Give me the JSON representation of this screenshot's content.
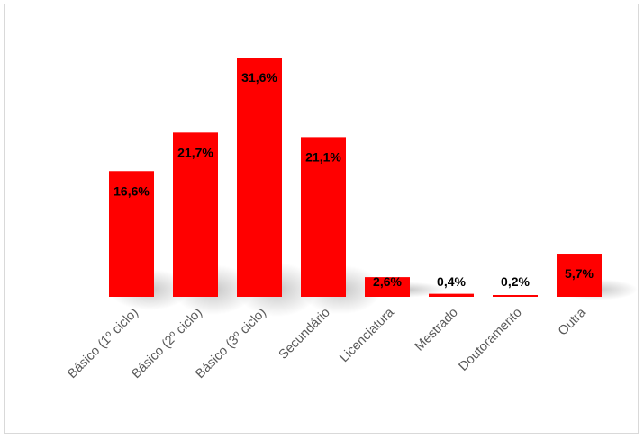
{
  "chart_data": {
    "type": "bar",
    "categories": [
      "Básico (1º ciclo)",
      "Básico (2º ciclo)",
      "Básico (3º ciclo)",
      "Secundário",
      "Licenciatura",
      "Mestrado",
      "Doutoramento",
      "Outra"
    ],
    "values": [
      16.6,
      21.7,
      31.6,
      21.1,
      2.6,
      0.4,
      0.2,
      5.7
    ],
    "data_labels": [
      "16,6%",
      "21,7%",
      "31,6%",
      "21,1%",
      "2,6%",
      "0,4%",
      "0,2%",
      "5,7%"
    ],
    "title": "",
    "xlabel": "",
    "ylabel": "",
    "ylim": [
      0,
      31.6
    ],
    "grid": false,
    "legend": "none",
    "bar_color": "#ff0000"
  }
}
